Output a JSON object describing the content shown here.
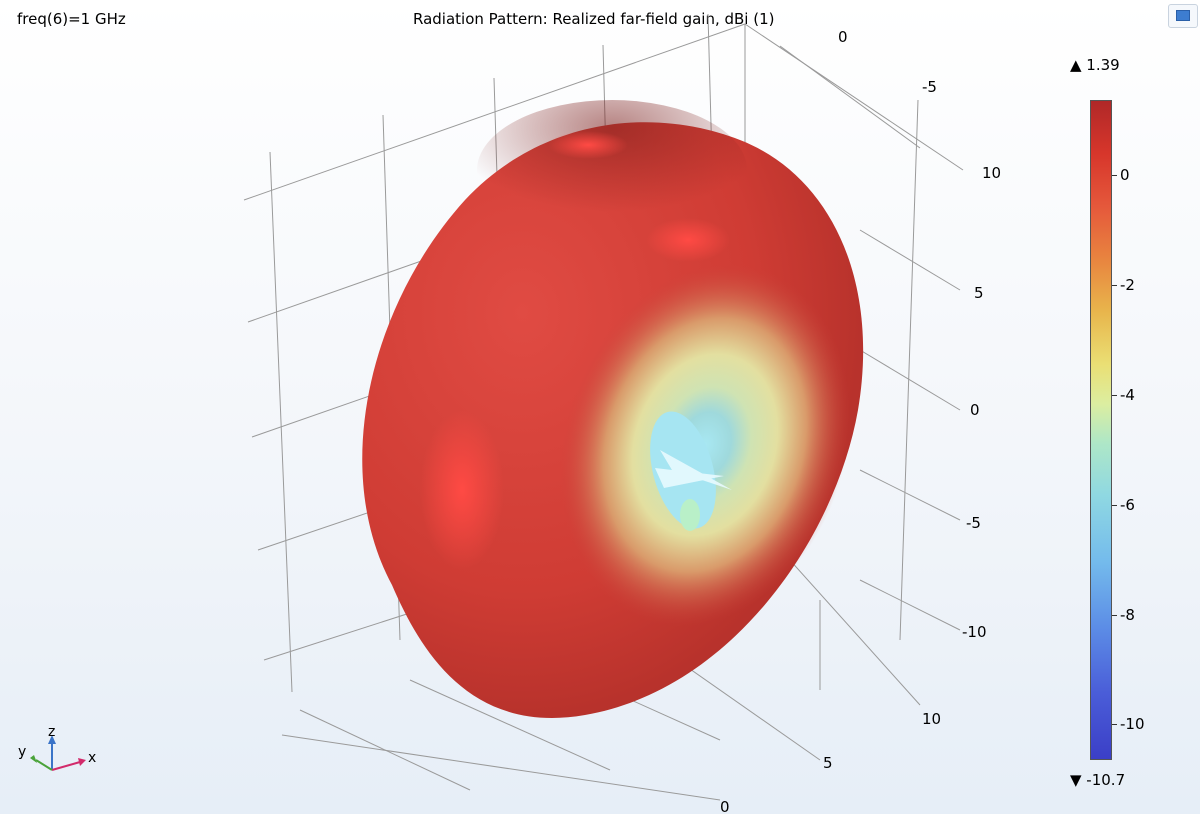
{
  "header": {
    "parameter": "freq(6)=1 GHz",
    "title": "Radiation Pattern: Realized far-field gain, dBi (1)"
  },
  "axes": {
    "top_zero": "0",
    "right_labels": [
      "-5",
      "10",
      "5",
      "0",
      "-5",
      "-10"
    ],
    "bottom_labels": [
      "10",
      "5",
      "0"
    ]
  },
  "colorbar": {
    "max_label": "▲ 1.39",
    "min_label": "▼ -10.7",
    "ticks": [
      "0",
      "-2",
      "-4",
      "-6",
      "-8",
      "-10"
    ],
    "max": 1.39,
    "min": -10.7
  },
  "triad": {
    "x": "x",
    "y": "y",
    "z": "z"
  },
  "colors": {
    "surface_red": "#d23c35",
    "highlight": "#ff4a44",
    "hole_cyan": "#9fe3f0"
  }
}
